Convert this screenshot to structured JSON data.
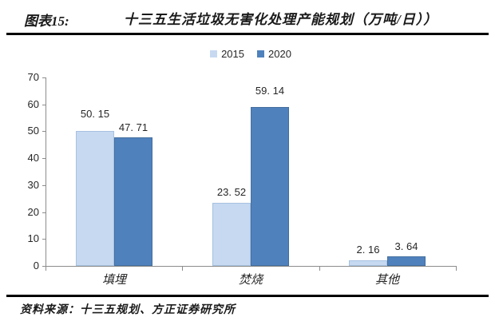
{
  "header": {
    "figure_label": "图表15:",
    "title": "十三五生活垃圾无害化处理产能规划（万吨/日））"
  },
  "chart_data": {
    "type": "bar",
    "categories": [
      "填埋",
      "焚烧",
      "其他"
    ],
    "series": [
      {
        "name": "2015",
        "color": "#c6d9f1",
        "border_color": "#a7c1e0",
        "values": [
          50.15,
          23.52,
          2.16
        ],
        "labels": [
          "50. 15",
          "23. 52",
          "2. 16"
        ]
      },
      {
        "name": "2020",
        "color": "#4f81bd",
        "border_color": "#44709f",
        "values": [
          47.71,
          59.14,
          3.64
        ],
        "labels": [
          "47. 71",
          "59. 14",
          "3. 64"
        ]
      }
    ],
    "title": "十三五生活垃圾无害化处理产能规划（万吨/日））",
    "xlabel": "",
    "ylabel": "",
    "ylim": [
      0,
      70
    ],
    "yticks": [
      0,
      10,
      20,
      30,
      40,
      50,
      60,
      70
    ],
    "grid": false,
    "legend_position": "top-center",
    "axis_color": "#8c8c8c",
    "text_color": "#262626"
  },
  "footer": {
    "source": "资料来源：十三五规划、方正证券研究所"
  }
}
